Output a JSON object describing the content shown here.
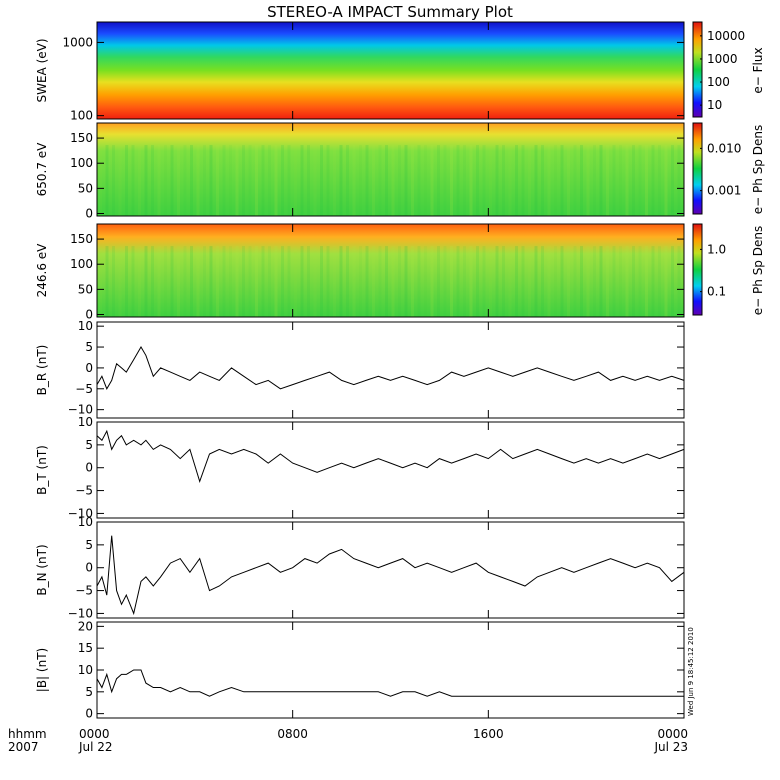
{
  "title": "STEREO-A IMPACT Summary Plot",
  "stamp": "Wed Jun  9 18:45:12 2010",
  "time_axis": {
    "corner_top": "hhmm",
    "corner_bottom": "2007",
    "ticks": [
      {
        "hour": 0,
        "label": "0000",
        "date": "Jul 22"
      },
      {
        "hour": 8,
        "label": "0800",
        "date": ""
      },
      {
        "hour": 16,
        "label": "1600",
        "date": ""
      },
      {
        "hour": 24,
        "label": "0000",
        "date": "Jul 23"
      }
    ]
  },
  "chart_data": [
    {
      "type": "heatmap",
      "ylabel": "SWEA (eV)",
      "yscale": "log",
      "ylim": [
        90,
        1900
      ],
      "yticks": [
        "100",
        "1000"
      ],
      "colorbar_label": "e− Flux",
      "colorbar_ticks": [
        "10000",
        "1000",
        "100",
        "10"
      ],
      "colorbar_range": [
        1,
        20000
      ],
      "rows_high_to_low": [
        "blue",
        "cyan",
        "green",
        "yellow-green",
        "orange",
        "red"
      ]
    },
    {
      "type": "heatmap",
      "ylabel": "650.7 eV",
      "ylim": [
        -5,
        180
      ],
      "yticks": [
        "0",
        "50",
        "100",
        "150"
      ],
      "colorbar_label": "e− Ph Sp Dens",
      "colorbar_ticks": [
        "0.010",
        "0.001"
      ]
    },
    {
      "type": "heatmap",
      "ylabel": "246.6 eV",
      "ylim": [
        -5,
        180
      ],
      "yticks": [
        "0",
        "50",
        "100",
        "150"
      ],
      "colorbar_label": "e− Ph Sp Dens",
      "colorbar_ticks": [
        "1.0",
        "0.1"
      ]
    },
    {
      "type": "line",
      "ylabel": "B_R (nT)",
      "ylim": [
        -12,
        11
      ],
      "yticks": [
        "10",
        "5",
        "0",
        "−5",
        "−10"
      ],
      "x_hours": [
        0,
        0.2,
        0.4,
        0.6,
        0.8,
        1,
        1.2,
        1.5,
        1.8,
        2,
        2.3,
        2.6,
        3,
        3.4,
        3.8,
        4.2,
        4.6,
        5,
        5.5,
        6,
        6.5,
        7,
        7.5,
        8,
        8.5,
        9,
        9.5,
        10,
        10.5,
        11,
        11.5,
        12,
        12.5,
        13,
        13.5,
        14,
        14.5,
        15,
        15.5,
        16,
        16.5,
        17,
        17.5,
        18,
        18.5,
        19,
        19.5,
        20,
        20.5,
        21,
        21.5,
        22,
        22.5,
        23,
        23.5,
        24
      ],
      "y": [
        -4,
        -2,
        -5,
        -3,
        1,
        0,
        -1,
        2,
        5,
        3,
        -2,
        0,
        -1,
        -2,
        -3,
        -1,
        -2,
        -3,
        0,
        -2,
        -4,
        -3,
        -5,
        -4,
        -3,
        -2,
        -1,
        -3,
        -4,
        -3,
        -2,
        -3,
        -2,
        -3,
        -4,
        -3,
        -1,
        -2,
        -1,
        0,
        -1,
        -2,
        -1,
        0,
        -1,
        -2,
        -3,
        -2,
        -1,
        -3,
        -2,
        -3,
        -2,
        -3,
        -2,
        -3
      ]
    },
    {
      "type": "line",
      "ylabel": "B_T (nT)",
      "ylim": [
        -11,
        10
      ],
      "yticks": [
        "10",
        "5",
        "0",
        "−5",
        "−10"
      ],
      "x_hours": [
        0,
        0.2,
        0.4,
        0.6,
        0.8,
        1,
        1.2,
        1.5,
        1.8,
        2,
        2.3,
        2.6,
        3,
        3.4,
        3.8,
        4.2,
        4.6,
        5,
        5.5,
        6,
        6.5,
        7,
        7.5,
        8,
        8.5,
        9,
        9.5,
        10,
        10.5,
        11,
        11.5,
        12,
        12.5,
        13,
        13.5,
        14,
        14.5,
        15,
        15.5,
        16,
        16.5,
        17,
        17.5,
        18,
        18.5,
        19,
        19.5,
        20,
        20.5,
        21,
        21.5,
        22,
        22.5,
        23,
        23.5,
        24
      ],
      "y": [
        7,
        6,
        8,
        4,
        6,
        7,
        5,
        6,
        5,
        6,
        4,
        5,
        4,
        2,
        4,
        -3,
        3,
        4,
        3,
        4,
        3,
        1,
        3,
        1,
        0,
        -1,
        0,
        1,
        0,
        1,
        2,
        1,
        0,
        1,
        0,
        2,
        1,
        2,
        3,
        2,
        4,
        2,
        3,
        4,
        3,
        2,
        1,
        2,
        1,
        2,
        1,
        2,
        3,
        2,
        3,
        4
      ]
    },
    {
      "type": "line",
      "ylabel": "B_N (nT)",
      "ylim": [
        -11,
        10
      ],
      "yticks": [
        "10",
        "5",
        "0",
        "−5",
        "−10"
      ],
      "x_hours": [
        0,
        0.2,
        0.4,
        0.6,
        0.8,
        1,
        1.2,
        1.5,
        1.8,
        2,
        2.3,
        2.6,
        3,
        3.4,
        3.8,
        4.2,
        4.6,
        5,
        5.5,
        6,
        6.5,
        7,
        7.5,
        8,
        8.5,
        9,
        9.5,
        10,
        10.5,
        11,
        11.5,
        12,
        12.5,
        13,
        13.5,
        14,
        14.5,
        15,
        15.5,
        16,
        16.5,
        17,
        17.5,
        18,
        18.5,
        19,
        19.5,
        20,
        20.5,
        21,
        21.5,
        22,
        22.5,
        23,
        23.5,
        24
      ],
      "y": [
        -4,
        -2,
        -6,
        7,
        -5,
        -8,
        -6,
        -10,
        -3,
        -2,
        -4,
        -2,
        1,
        2,
        -1,
        2,
        -5,
        -4,
        -2,
        -1,
        0,
        1,
        -1,
        0,
        2,
        1,
        3,
        4,
        2,
        1,
        0,
        1,
        2,
        0,
        1,
        0,
        -1,
        0,
        1,
        -1,
        -2,
        -3,
        -4,
        -2,
        -1,
        0,
        -1,
        0,
        1,
        2,
        1,
        0,
        1,
        0,
        -3,
        -1
      ]
    },
    {
      "type": "line",
      "ylabel": "|B| (nT)",
      "ylim": [
        -1,
        21
      ],
      "yticks": [
        "20",
        "15",
        "10",
        "5",
        "0"
      ],
      "x_hours": [
        0,
        0.2,
        0.4,
        0.6,
        0.8,
        1,
        1.2,
        1.5,
        1.8,
        2,
        2.3,
        2.6,
        3,
        3.4,
        3.8,
        4.2,
        4.6,
        5,
        5.5,
        6,
        6.5,
        7,
        7.5,
        8,
        8.5,
        9,
        9.5,
        10,
        10.5,
        11,
        11.5,
        12,
        12.5,
        13,
        13.5,
        14,
        14.5,
        15,
        15.5,
        16,
        16.5,
        17,
        17.5,
        18,
        18.5,
        19,
        19.5,
        20,
        20.5,
        21,
        21.5,
        22,
        22.5,
        23,
        23.5,
        24
      ],
      "y": [
        8,
        6,
        9,
        5,
        8,
        9,
        9,
        10,
        10,
        7,
        6,
        6,
        5,
        6,
        5,
        5,
        4,
        5,
        6,
        5,
        5,
        5,
        5,
        5,
        5,
        5,
        5,
        5,
        5,
        5,
        5,
        4,
        5,
        5,
        4,
        5,
        4,
        4,
        4,
        4,
        4,
        4,
        4,
        4,
        4,
        4,
        4,
        4,
        4,
        4,
        4,
        4,
        4,
        4,
        4,
        4
      ]
    }
  ]
}
